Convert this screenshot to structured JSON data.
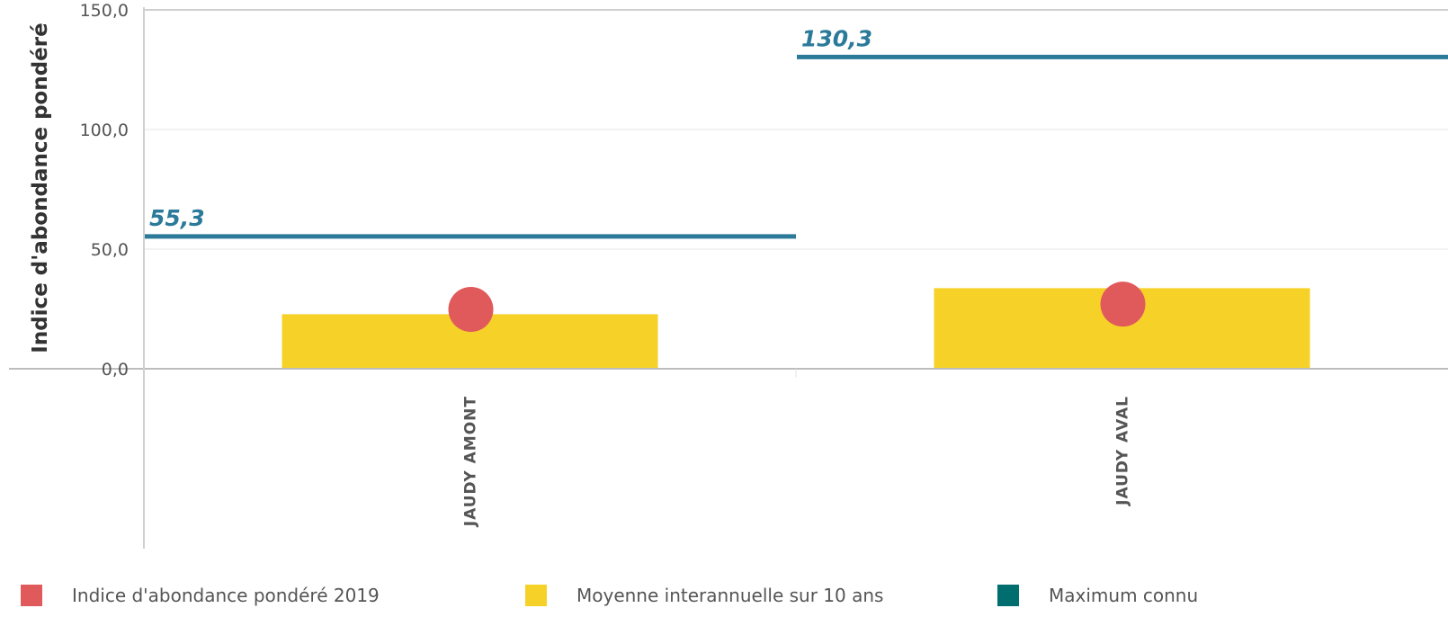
{
  "chart_data": {
    "type": "bar",
    "ylabel": "Indice d'abondance pondéré",
    "ylim": [
      0,
      150
    ],
    "yticks": [
      "0,0",
      "50,0",
      "100,0",
      "150,0"
    ],
    "ytick_values": [
      0,
      50,
      100,
      150
    ],
    "grid": true,
    "legend_position": "bottom",
    "categories": [
      "JAUDY AMONT",
      "JAUDY AVAL"
    ],
    "series": [
      {
        "name": "Indice d'abondance pondéré 2019",
        "kind": "point",
        "color": "#e05a5c",
        "values": [
          24.8,
          27.0
        ]
      },
      {
        "name": "Moyenne interannuelle sur 10 ans",
        "kind": "bar",
        "color": "#f6d229",
        "values": [
          22.8,
          33.7
        ]
      },
      {
        "name": "Maximum connu",
        "kind": "line",
        "color": "#2b7a99",
        "legend_color": "#006d6f",
        "values": [
          55.3,
          130.3
        ],
        "labels": [
          "55,3",
          "130,3"
        ]
      }
    ]
  }
}
